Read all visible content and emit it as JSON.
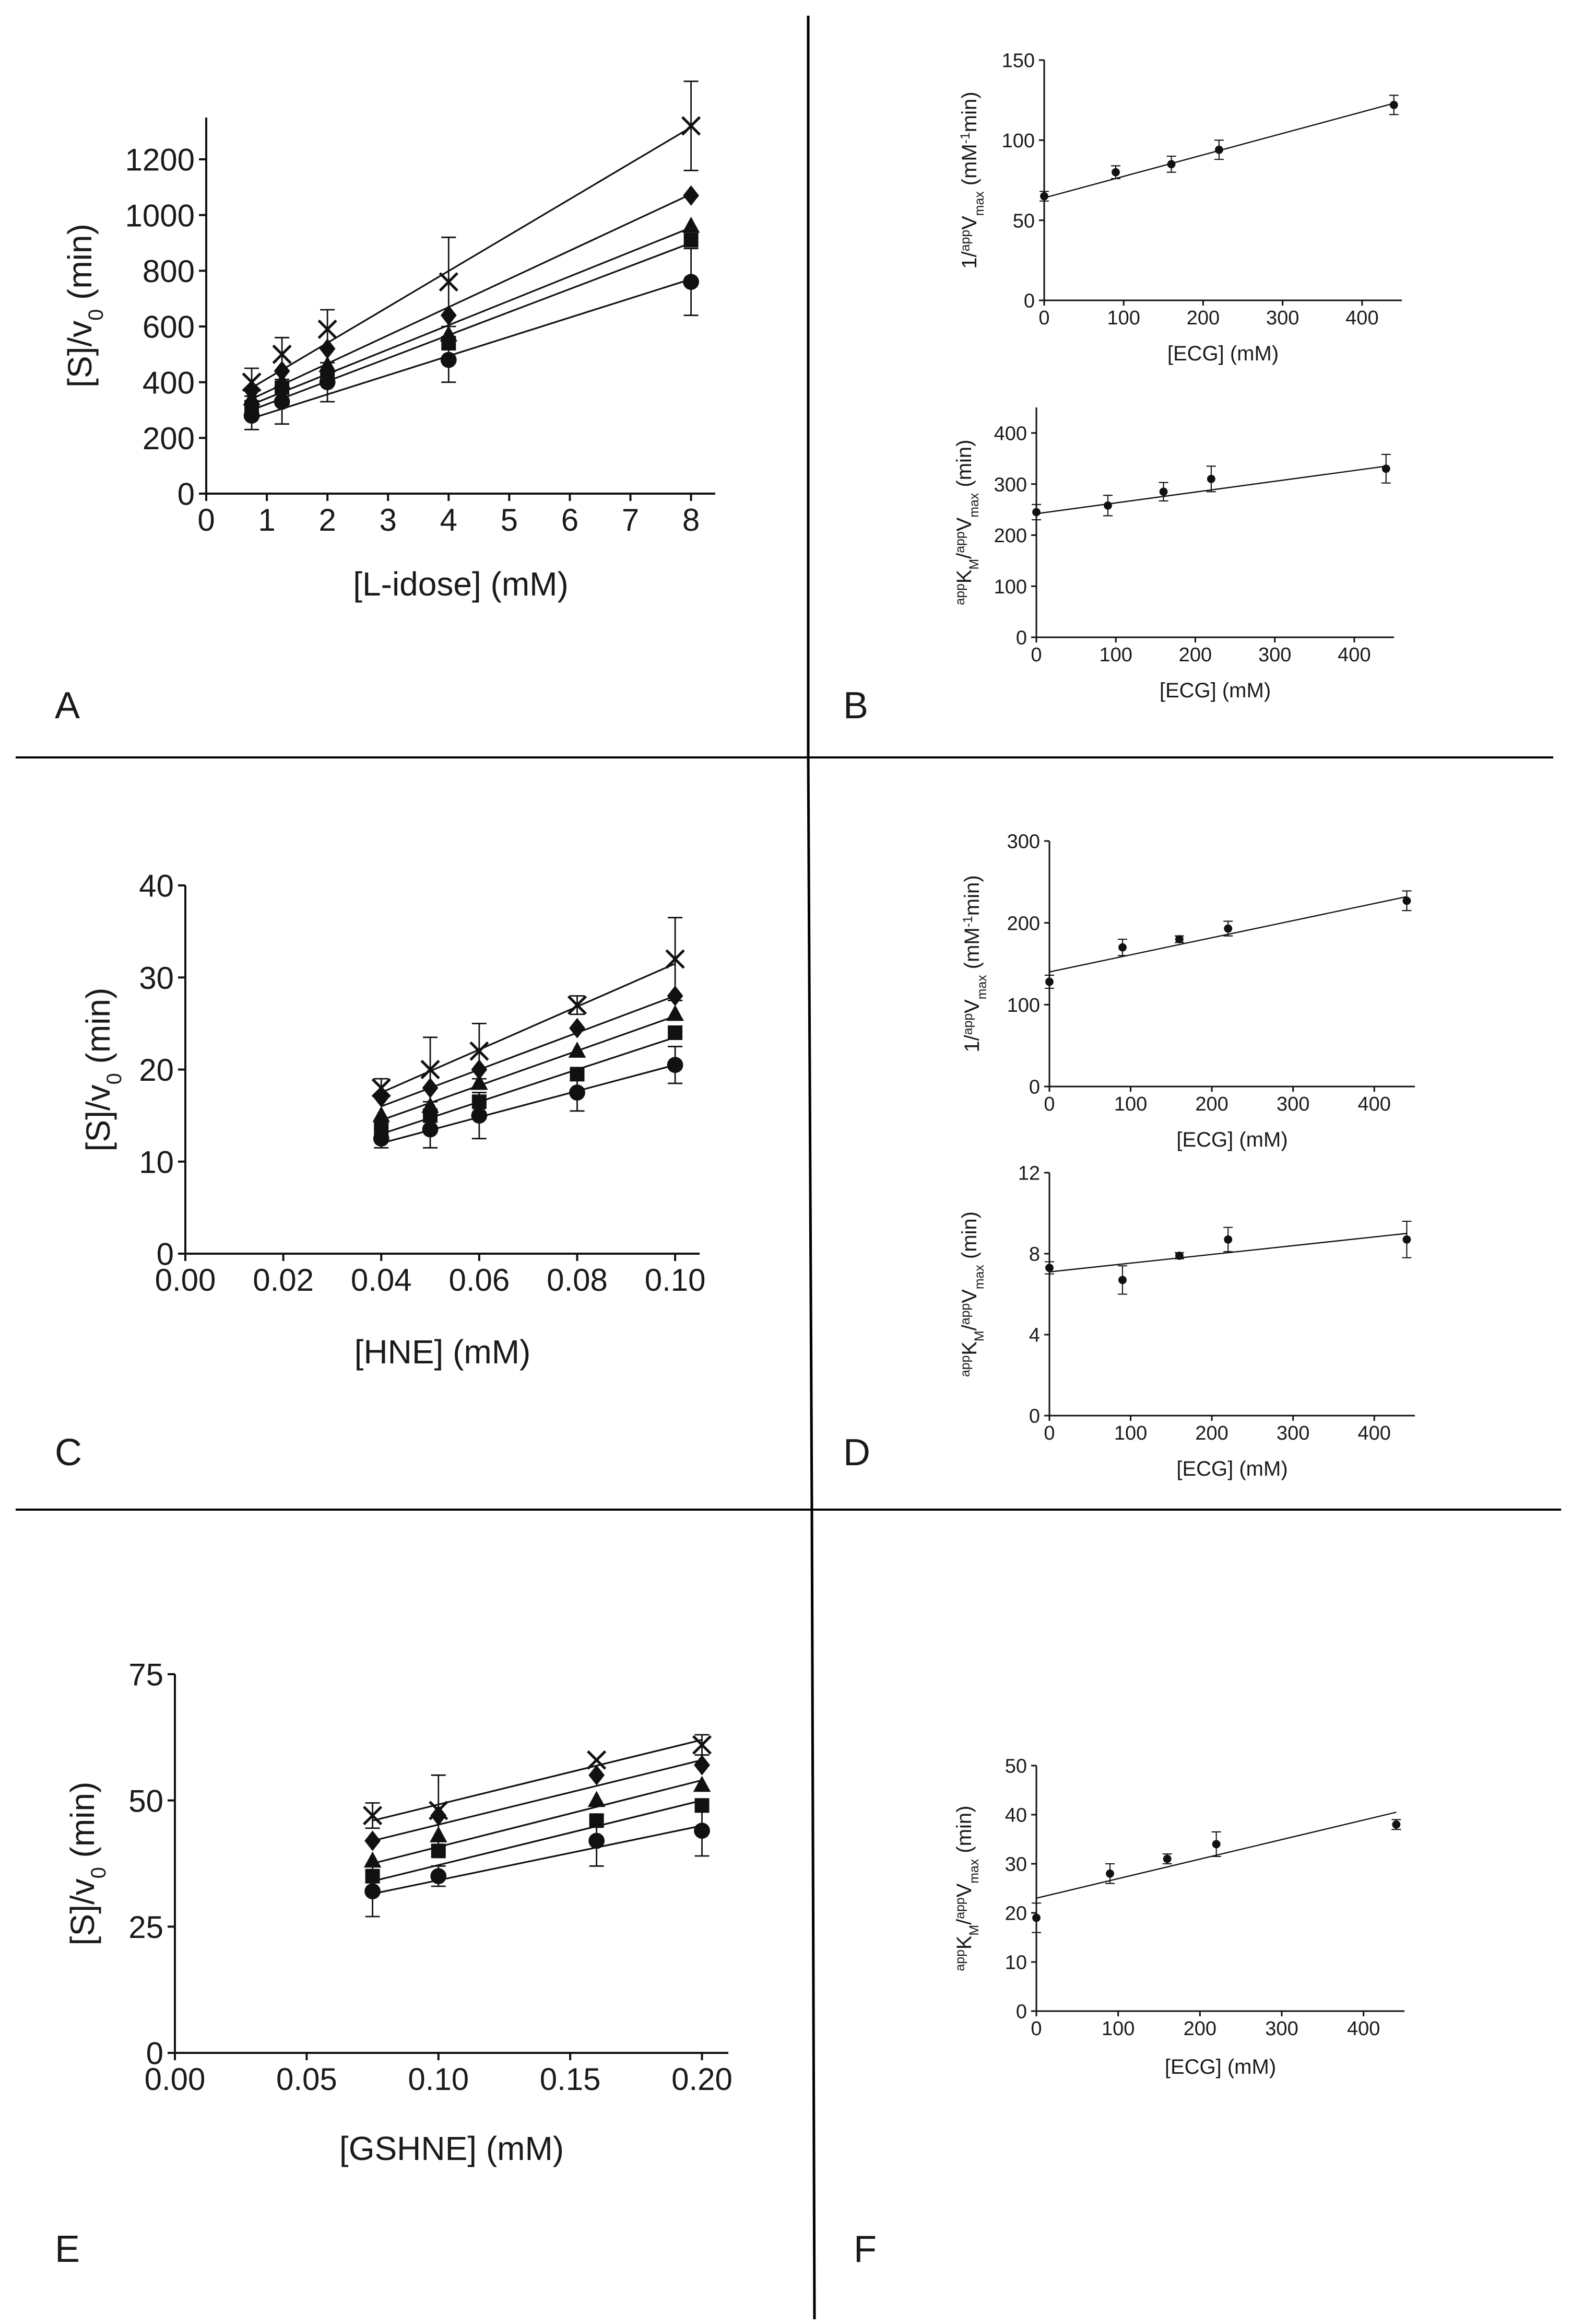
{
  "panel_letters": [
    "A",
    "B",
    "C",
    "D",
    "E",
    "F"
  ],
  "chart_data": [
    {
      "id": "A",
      "type": "line",
      "marker_mode": "series",
      "title": "",
      "xlabel": "[L-idose] (mM)",
      "ylabel": "[S]/v0 (min)",
      "xlim": [
        0,
        8.4
      ],
      "ylim": [
        0,
        1350
      ],
      "xticks": [
        0,
        1,
        2,
        3,
        4,
        5,
        6,
        7,
        8
      ],
      "yticks": [
        0,
        200,
        400,
        600,
        800,
        1000,
        1200
      ],
      "tick_decimals": 0,
      "x": [
        0.75,
        1.25,
        2,
        4,
        8
      ],
      "series": [
        {
          "name": "cross",
          "marker": "x",
          "values": [
            400,
            500,
            590,
            760,
            1320
          ],
          "errors": [
            50,
            60,
            70,
            160,
            160
          ],
          "line": [
            380,
            1315
          ]
        },
        {
          "name": "diamond",
          "marker": "diamond",
          "values": [
            370,
            440,
            520,
            640,
            1070
          ],
          "errors": [
            0,
            0,
            0,
            0,
            0
          ],
          "line": [
            340,
            1075
          ]
        },
        {
          "name": "triangle",
          "marker": "triangle",
          "values": [
            340,
            400,
            460,
            570,
            960
          ],
          "errors": [
            0,
            0,
            0,
            0,
            0
          ],
          "line": [
            320,
            955
          ]
        },
        {
          "name": "square",
          "marker": "square",
          "values": [
            310,
            380,
            420,
            540,
            910
          ],
          "errors": [
            0,
            0,
            0,
            0,
            0
          ],
          "line": [
            300,
            900
          ]
        },
        {
          "name": "circle",
          "marker": "circle",
          "values": [
            280,
            330,
            400,
            480,
            760
          ],
          "errors": [
            50,
            80,
            70,
            80,
            120
          ],
          "line": [
            270,
            770
          ]
        }
      ]
    },
    {
      "id": "B-top",
      "type": "scatter",
      "marker_mode": "circle",
      "xlabel": "[ECG] (mM)",
      "ylabel": "1/appVmax (mM-1min)",
      "xlim": [
        0,
        450
      ],
      "ylim": [
        0,
        150
      ],
      "xticks": [
        0,
        100,
        200,
        300,
        400
      ],
      "yticks": [
        0,
        50,
        100,
        150
      ],
      "tick_decimals": 0,
      "x": [
        0,
        90,
        160,
        220,
        440
      ],
      "series": [
        {
          "name": "points",
          "marker": "circle",
          "values": [
            65,
            80,
            85,
            94,
            122
          ],
          "errors": [
            3,
            4,
            5,
            6,
            6
          ],
          "line": [
            64,
            123
          ]
        }
      ]
    },
    {
      "id": "B-bottom",
      "type": "scatter",
      "marker_mode": "circle",
      "xlabel": "[ECG] (mM)",
      "ylabel": "appKM/appVmax (min)",
      "xlim": [
        0,
        450
      ],
      "ylim": [
        0,
        450
      ],
      "xticks": [
        0,
        100,
        200,
        300,
        400
      ],
      "yticks": [
        0,
        100,
        200,
        300,
        400
      ],
      "tick_decimals": 0,
      "x": [
        0,
        90,
        160,
        220,
        440
      ],
      "series": [
        {
          "name": "points",
          "marker": "circle",
          "values": [
            245,
            258,
            285,
            310,
            330
          ],
          "errors": [
            15,
            20,
            18,
            25,
            28
          ],
          "line": [
            242,
            335
          ]
        }
      ]
    },
    {
      "id": "C",
      "type": "line",
      "marker_mode": "series",
      "xlabel": "[HNE] (mM)",
      "ylabel": "[S]/v0 (min)",
      "xlim": [
        0,
        0.105
      ],
      "ylim": [
        0,
        40
      ],
      "xticks": [
        0.0,
        0.02,
        0.04,
        0.06,
        0.08,
        0.1
      ],
      "yticks": [
        0,
        10,
        20,
        30,
        40
      ],
      "tick_decimals": 2,
      "y_tick_decimals": 0,
      "x": [
        0.04,
        0.05,
        0.06,
        0.08,
        0.1
      ],
      "series": [
        {
          "name": "cross",
          "marker": "x",
          "values": [
            18,
            20,
            22,
            27,
            32
          ],
          "errors": [
            1,
            3.5,
            3,
            1,
            4.5
          ],
          "line": [
            17.5,
            31.5
          ]
        },
        {
          "name": "diamond",
          "marker": "diamond",
          "values": [
            17,
            18,
            20,
            24.5,
            28
          ],
          "errors": [
            0,
            0,
            0,
            0,
            0
          ],
          "line": [
            16,
            28
          ]
        },
        {
          "name": "triangle",
          "marker": "triangle",
          "values": [
            15,
            16,
            18.5,
            22,
            26
          ],
          "errors": [
            0,
            0,
            0,
            0,
            0
          ],
          "line": [
            14.5,
            25.8
          ]
        },
        {
          "name": "square",
          "marker": "square",
          "values": [
            13.5,
            15,
            16.5,
            19.5,
            24
          ],
          "errors": [
            0,
            0,
            0,
            0,
            0
          ],
          "line": [
            13,
            23.5
          ]
        },
        {
          "name": "circle",
          "marker": "circle",
          "values": [
            12.5,
            13.5,
            15,
            17.5,
            20.5
          ],
          "errors": [
            1,
            2,
            2.5,
            2,
            2
          ],
          "line": [
            12,
            20.5
          ]
        }
      ]
    },
    {
      "id": "D-top",
      "type": "scatter",
      "marker_mode": "circle",
      "xlabel": "[ECG] (mM)",
      "ylabel": "1/appVmax (mM-1min)",
      "xlim": [
        0,
        450
      ],
      "ylim": [
        0,
        300
      ],
      "xticks": [
        0,
        100,
        200,
        300,
        400
      ],
      "yticks": [
        0,
        100,
        200,
        300
      ],
      "tick_decimals": 0,
      "x": [
        0,
        90,
        160,
        220,
        440
      ],
      "series": [
        {
          "name": "points",
          "marker": "circle",
          "values": [
            128,
            170,
            180,
            193,
            227
          ],
          "errors": [
            8,
            10,
            4,
            9,
            12
          ],
          "line": [
            140,
            232
          ]
        }
      ]
    },
    {
      "id": "D-bottom",
      "type": "scatter",
      "marker_mode": "circle",
      "xlabel": "[ECG] (mM)",
      "ylabel": "appKM/appVmax (min)",
      "xlim": [
        0,
        450
      ],
      "ylim": [
        0,
        12
      ],
      "xticks": [
        0,
        100,
        200,
        300,
        400
      ],
      "yticks": [
        0,
        4,
        8,
        12
      ],
      "tick_decimals": 0,
      "x": [
        0,
        90,
        160,
        220,
        440
      ],
      "series": [
        {
          "name": "points",
          "marker": "circle",
          "values": [
            7.3,
            6.7,
            7.9,
            8.7,
            8.7
          ],
          "errors": [
            0.3,
            0.7,
            0.15,
            0.6,
            0.9
          ],
          "line": [
            7.1,
            9.0
          ]
        }
      ]
    },
    {
      "id": "E",
      "type": "line",
      "marker_mode": "series",
      "xlabel": "[GSHNE] (mM)",
      "ylabel": "[S]/v0 (min)",
      "xlim": [
        0,
        0.21
      ],
      "ylim": [
        0,
        75
      ],
      "xticks": [
        0.0,
        0.05,
        0.1,
        0.15,
        0.2
      ],
      "yticks": [
        0,
        25,
        50,
        75
      ],
      "tick_decimals": 2,
      "y_tick_decimals": 0,
      "x": [
        0.075,
        0.1,
        0.16,
        0.2
      ],
      "series": [
        {
          "name": "cross",
          "marker": "x",
          "values": [
            47,
            48,
            58,
            61
          ],
          "errors": [
            2.5,
            7,
            0,
            2
          ],
          "line": [
            46,
            62
          ]
        },
        {
          "name": "diamond",
          "marker": "diamond",
          "values": [
            42,
            47,
            55,
            57
          ],
          "errors": [
            0,
            0,
            0,
            0
          ],
          "line": [
            42,
            58
          ]
        },
        {
          "name": "triangle",
          "marker": "triangle",
          "values": [
            38,
            43,
            50,
            53
          ],
          "errors": [
            0,
            0,
            0,
            0
          ],
          "line": [
            37.5,
            54
          ]
        },
        {
          "name": "square",
          "marker": "square",
          "values": [
            35,
            40,
            46,
            49
          ],
          "errors": [
            0,
            0,
            0,
            0
          ],
          "line": [
            34,
            50
          ]
        },
        {
          "name": "circle",
          "marker": "circle",
          "values": [
            32,
            35,
            42,
            44
          ],
          "errors": [
            5,
            2,
            5,
            5
          ],
          "line": [
            31.5,
            45
          ]
        }
      ]
    },
    {
      "id": "F",
      "type": "scatter",
      "marker_mode": "circle",
      "xlabel": "[ECG] (mM)",
      "ylabel": "appKM/appVmax (min)",
      "xlim": [
        0,
        450
      ],
      "ylim": [
        0,
        50
      ],
      "xticks": [
        0,
        100,
        200,
        300,
        400
      ],
      "yticks": [
        0,
        10,
        20,
        30,
        40,
        50
      ],
      "tick_decimals": 0,
      "x": [
        0,
        90,
        160,
        220,
        440
      ],
      "series": [
        {
          "name": "points",
          "marker": "circle",
          "values": [
            19,
            28,
            31,
            34,
            38
          ],
          "errors": [
            3,
            2,
            1,
            2.5,
            1
          ],
          "line": [
            23,
            40.5
          ]
        }
      ]
    }
  ]
}
